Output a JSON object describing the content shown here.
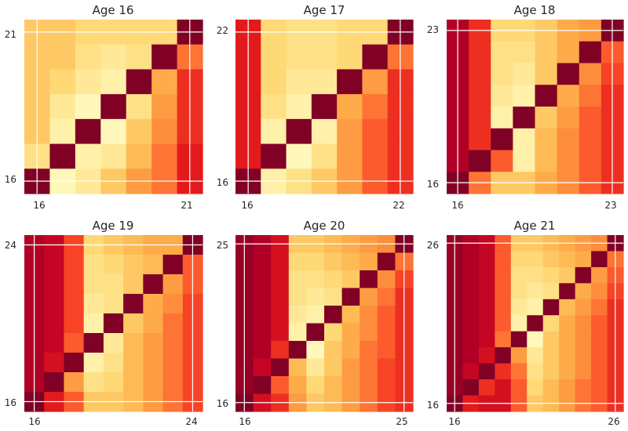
{
  "figure": {
    "colormap": [
      "#ffffcc",
      "#ffeda0",
      "#fed976",
      "#feb24c",
      "#fd8d3c",
      "#fc4e2a",
      "#e31a1c",
      "#bd0026",
      "#800026"
    ],
    "grid_color": "#ffffff"
  },
  "chart_data": [
    {
      "type": "heatmap",
      "title": "Age 16",
      "x_ticks": [
        "16",
        "21"
      ],
      "y_ticks": [
        "16",
        "21"
      ],
      "matrix": [
        [
          0.3,
          0.3,
          0.25,
          0.25,
          0.25,
          0.25,
          1.0
        ],
        [
          0.3,
          0.3,
          0.2,
          0.15,
          0.2,
          1.0,
          0.55
        ],
        [
          0.3,
          0.25,
          0.15,
          0.1,
          1.0,
          0.4,
          0.7
        ],
        [
          0.3,
          0.15,
          0.05,
          1.0,
          0.2,
          0.45,
          0.7
        ],
        [
          0.3,
          0.1,
          1.0,
          0.05,
          0.3,
          0.5,
          0.7
        ],
        [
          0.2,
          1.0,
          0.1,
          0.15,
          0.35,
          0.55,
          0.75
        ],
        [
          1.0,
          0.05,
          0.15,
          0.3,
          0.45,
          0.55,
          0.75
        ]
      ]
    },
    {
      "type": "heatmap",
      "title": "Age 17",
      "x_ticks": [
        "16",
        "22"
      ],
      "y_ticks": [
        "16",
        "22"
      ],
      "matrix": [
        [
          0.75,
          0.25,
          0.2,
          0.2,
          0.25,
          0.25,
          1.0
        ],
        [
          0.75,
          0.25,
          0.2,
          0.2,
          0.25,
          1.0,
          0.55
        ],
        [
          0.75,
          0.25,
          0.15,
          0.15,
          1.0,
          0.45,
          0.7
        ],
        [
          0.75,
          0.2,
          0.1,
          1.0,
          0.4,
          0.55,
          0.7
        ],
        [
          0.75,
          0.1,
          1.0,
          0.1,
          0.45,
          0.6,
          0.7
        ],
        [
          0.75,
          1.0,
          0.05,
          0.2,
          0.45,
          0.6,
          0.7
        ],
        [
          1.0,
          0.1,
          0.2,
          0.3,
          0.45,
          0.6,
          0.7
        ]
      ]
    },
    {
      "type": "heatmap",
      "title": "Age 18",
      "x_ticks": [
        "16",
        "23"
      ],
      "y_ticks": [
        "16",
        "23"
      ],
      "matrix": [
        [
          0.9,
          0.7,
          0.25,
          0.25,
          0.3,
          0.4,
          0.45,
          1.0
        ],
        [
          0.9,
          0.7,
          0.2,
          0.2,
          0.3,
          0.4,
          1.0,
          0.6
        ],
        [
          0.9,
          0.7,
          0.2,
          0.15,
          0.3,
          1.0,
          0.5,
          0.65
        ],
        [
          0.9,
          0.7,
          0.15,
          0.1,
          1.0,
          0.4,
          0.55,
          0.7
        ],
        [
          0.9,
          0.7,
          0.1,
          1.0,
          0.3,
          0.45,
          0.6,
          0.7
        ],
        [
          0.9,
          0.7,
          1.0,
          0.1,
          0.35,
          0.5,
          0.6,
          0.7
        ],
        [
          0.9,
          1.0,
          0.6,
          0.1,
          0.35,
          0.5,
          0.6,
          0.7
        ],
        [
          1.0,
          0.55,
          0.3,
          0.3,
          0.4,
          0.5,
          0.6,
          0.7
        ]
      ]
    },
    {
      "type": "heatmap",
      "title": "Age 19",
      "x_ticks": [
        "16",
        "24"
      ],
      "y_ticks": [
        "16",
        "24"
      ],
      "matrix": [
        [
          0.9,
          0.85,
          0.65,
          0.25,
          0.3,
          0.35,
          0.4,
          0.4,
          1.0
        ],
        [
          0.9,
          0.85,
          0.65,
          0.2,
          0.25,
          0.3,
          0.35,
          1.0,
          0.6
        ],
        [
          0.9,
          0.85,
          0.65,
          0.2,
          0.2,
          0.3,
          1.0,
          0.45,
          0.6
        ],
        [
          0.9,
          0.85,
          0.65,
          0.15,
          0.2,
          1.0,
          0.4,
          0.5,
          0.65
        ],
        [
          0.9,
          0.85,
          0.65,
          0.1,
          1.0,
          0.3,
          0.4,
          0.55,
          0.65
        ],
        [
          0.9,
          0.85,
          0.6,
          1.0,
          0.15,
          0.35,
          0.45,
          0.55,
          0.65
        ],
        [
          0.9,
          0.8,
          1.0,
          0.1,
          0.2,
          0.35,
          0.45,
          0.55,
          0.65
        ],
        [
          0.9,
          1.0,
          0.45,
          0.2,
          0.25,
          0.35,
          0.45,
          0.55,
          0.65
        ],
        [
          1.0,
          0.75,
          0.6,
          0.3,
          0.3,
          0.35,
          0.45,
          0.55,
          0.65
        ]
      ]
    },
    {
      "type": "heatmap",
      "title": "Age 20",
      "x_ticks": [
        "16",
        "25"
      ],
      "y_ticks": [
        "16",
        "25"
      ],
      "matrix": [
        [
          0.95,
          0.9,
          0.8,
          0.3,
          0.3,
          0.35,
          0.4,
          0.45,
          0.5,
          1.0
        ],
        [
          0.95,
          0.9,
          0.8,
          0.25,
          0.25,
          0.3,
          0.35,
          0.4,
          1.0,
          0.55
        ],
        [
          0.95,
          0.9,
          0.8,
          0.2,
          0.2,
          0.25,
          0.3,
          1.0,
          0.5,
          0.65
        ],
        [
          0.95,
          0.9,
          0.8,
          0.2,
          0.15,
          0.2,
          1.0,
          0.45,
          0.55,
          0.7
        ],
        [
          0.95,
          0.9,
          0.8,
          0.15,
          0.1,
          1.0,
          0.35,
          0.5,
          0.6,
          0.7
        ],
        [
          0.95,
          0.9,
          0.8,
          0.1,
          1.0,
          0.25,
          0.4,
          0.5,
          0.6,
          0.7
        ],
        [
          0.95,
          0.9,
          0.7,
          1.0,
          0.05,
          0.3,
          0.4,
          0.55,
          0.6,
          0.7
        ],
        [
          0.95,
          0.85,
          1.0,
          0.35,
          0.15,
          0.3,
          0.45,
          0.55,
          0.65,
          0.7
        ],
        [
          0.95,
          1.0,
          0.6,
          0.4,
          0.25,
          0.35,
          0.45,
          0.55,
          0.65,
          0.7
        ],
        [
          1.0,
          0.8,
          0.7,
          0.45,
          0.3,
          0.35,
          0.45,
          0.55,
          0.65,
          0.7
        ]
      ]
    },
    {
      "type": "heatmap",
      "title": "Age 21",
      "x_ticks": [
        "16",
        "26"
      ],
      "y_ticks": [
        "16",
        "26"
      ],
      "matrix": [
        [
          0.95,
          0.9,
          0.85,
          0.6,
          0.3,
          0.3,
          0.35,
          0.4,
          0.45,
          0.5,
          1.0
        ],
        [
          0.95,
          0.9,
          0.85,
          0.6,
          0.25,
          0.25,
          0.3,
          0.35,
          0.4,
          1.0,
          0.55
        ],
        [
          0.95,
          0.9,
          0.85,
          0.6,
          0.2,
          0.2,
          0.25,
          0.3,
          1.0,
          0.45,
          0.6
        ],
        [
          0.95,
          0.9,
          0.85,
          0.6,
          0.2,
          0.15,
          0.2,
          1.0,
          0.4,
          0.5,
          0.65
        ],
        [
          0.95,
          0.9,
          0.85,
          0.6,
          0.15,
          0.1,
          1.0,
          0.35,
          0.45,
          0.55,
          0.7
        ],
        [
          0.95,
          0.9,
          0.85,
          0.6,
          0.1,
          1.0,
          0.25,
          0.4,
          0.5,
          0.6,
          0.7
        ],
        [
          0.95,
          0.9,
          0.85,
          0.55,
          1.0,
          0.05,
          0.3,
          0.4,
          0.5,
          0.6,
          0.7
        ],
        [
          0.95,
          0.9,
          0.8,
          1.0,
          0.45,
          0.15,
          0.3,
          0.4,
          0.5,
          0.6,
          0.7
        ],
        [
          0.95,
          0.85,
          1.0,
          0.7,
          0.55,
          0.2,
          0.3,
          0.4,
          0.5,
          0.6,
          0.7
        ],
        [
          0.95,
          1.0,
          0.7,
          0.8,
          0.6,
          0.25,
          0.35,
          0.45,
          0.55,
          0.6,
          0.7
        ],
        [
          1.0,
          0.75,
          0.8,
          0.8,
          0.6,
          0.3,
          0.35,
          0.45,
          0.55,
          0.6,
          0.7
        ]
      ]
    }
  ]
}
